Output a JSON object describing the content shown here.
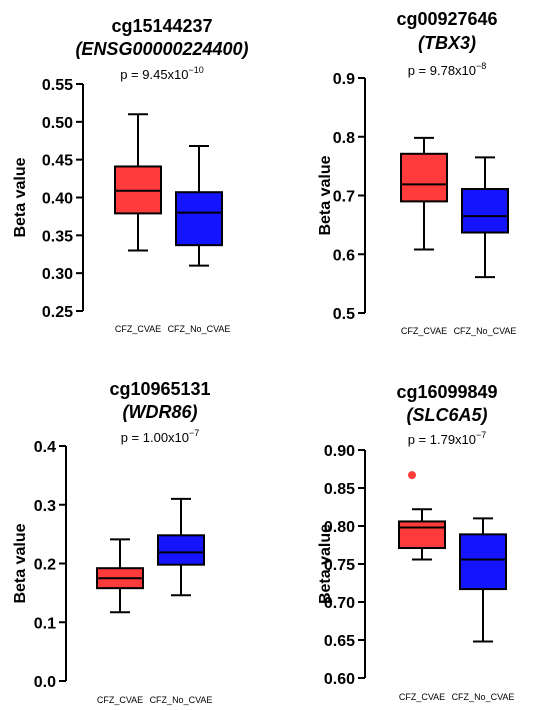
{
  "chart_data": [
    {
      "type": "box",
      "title": "cg15144237",
      "subtitle": "(ENSG00000224400)",
      "pvalue": "p = 9.45x10",
      "pvalue_exp": "−10",
      "ylabel": "Beta value",
      "ylim": [
        0.25,
        0.55
      ],
      "yticks": [
        "0.25",
        "0.30",
        "0.35",
        "0.40",
        "0.45",
        "0.50",
        "0.55"
      ],
      "categories": [
        "CFZ_CVAE",
        "CFZ_No_CVAE"
      ],
      "series": [
        {
          "color": "#ff3b3b",
          "min": 0.33,
          "q1": 0.379,
          "median": 0.409,
          "q3": 0.441,
          "max": 0.51,
          "outliers": []
        },
        {
          "color": "#1414ff",
          "min": 0.31,
          "q1": 0.337,
          "median": 0.38,
          "q3": 0.407,
          "max": 0.468,
          "outliers": []
        }
      ]
    },
    {
      "type": "box",
      "title": "cg00927646",
      "subtitle": "(TBX3)",
      "pvalue": "p = 9.78x10",
      "pvalue_exp": "−8",
      "ylabel": "Beta value",
      "ylim": [
        0.5,
        0.9
      ],
      "yticks": [
        "0.5",
        "0.6",
        "0.7",
        "0.8",
        "0.9"
      ],
      "categories": [
        "CFZ_CVAE",
        "CFZ_No_CVAE"
      ],
      "series": [
        {
          "color": "#ff3b3b",
          "min": 0.608,
          "q1": 0.69,
          "median": 0.719,
          "q3": 0.771,
          "max": 0.798,
          "outliers": []
        },
        {
          "color": "#1414ff",
          "min": 0.561,
          "q1": 0.637,
          "median": 0.665,
          "q3": 0.711,
          "max": 0.765,
          "outliers": []
        }
      ]
    },
    {
      "type": "box",
      "title": "cg10965131",
      "subtitle": "(WDR86)",
      "pvalue": "p = 1.00x10",
      "pvalue_exp": "−7",
      "ylabel": "Beta value",
      "ylim": [
        0.0,
        0.4
      ],
      "yticks": [
        "0.0",
        "0.1",
        "0.2",
        "0.3",
        "0.4"
      ],
      "categories": [
        "CFZ_CVAE",
        "CFZ_No_CVAE"
      ],
      "series": [
        {
          "color": "#ff3b3b",
          "min": 0.117,
          "q1": 0.158,
          "median": 0.175,
          "q3": 0.192,
          "max": 0.241,
          "outliers": []
        },
        {
          "color": "#1414ff",
          "min": 0.146,
          "q1": 0.198,
          "median": 0.219,
          "q3": 0.248,
          "max": 0.31,
          "outliers": []
        }
      ]
    },
    {
      "type": "box",
      "title": "cg16099849",
      "subtitle": "(SLC6A5)",
      "pvalue": "p = 1.79x10",
      "pvalue_exp": "−7",
      "ylabel": "Beta value",
      "ylim": [
        0.6,
        0.9
      ],
      "yticks": [
        "0.60",
        "0.65",
        "0.70",
        "0.75",
        "0.80",
        "0.85",
        "0.90"
      ],
      "categories": [
        "CFZ_CVAE",
        "CFZ_No_CVAE"
      ],
      "series": [
        {
          "color": "#ff3b3b",
          "min": 0.756,
          "q1": 0.771,
          "median": 0.798,
          "q3": 0.806,
          "max": 0.822,
          "outliers": [
            0.867
          ]
        },
        {
          "color": "#1414ff",
          "min": 0.648,
          "q1": 0.717,
          "median": 0.756,
          "q3": 0.789,
          "max": 0.81,
          "outliers": []
        }
      ]
    }
  ]
}
